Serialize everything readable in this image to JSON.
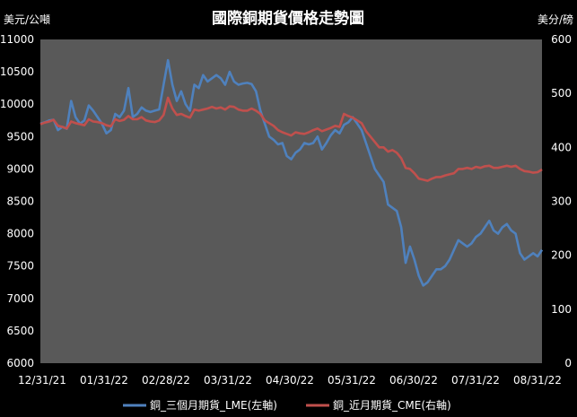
{
  "chart_data": {
    "type": "line",
    "title": "國際銅期貨價格走勢圖",
    "left_unit": "美元/公噸",
    "right_unit": "美分/磅",
    "left_axis": {
      "min": 6000,
      "max": 11000,
      "ticks": [
        6000,
        6500,
        7000,
        7500,
        8000,
        8500,
        9000,
        9500,
        10000,
        10500,
        11000
      ]
    },
    "right_axis": {
      "min": 0,
      "max": 600,
      "ticks": [
        0,
        100,
        200,
        300,
        400,
        500,
        600
      ]
    },
    "x_labels": [
      "12/31/21",
      "01/31/22",
      "02/28/22",
      "03/31/22",
      "04/30/22",
      "05/31/22",
      "06/30/22",
      "07/31/22",
      "08/31/22"
    ],
    "legend_position": "bottom",
    "grid": false,
    "background": "#595959",
    "series": [
      {
        "name": "銅_三個月期貨_LME(左軸)",
        "axis": "left",
        "color": "#4f81bd",
        "values": [
          9700,
          9720,
          9750,
          9760,
          9600,
          9650,
          9620,
          10050,
          9800,
          9700,
          9750,
          9980,
          9900,
          9800,
          9700,
          9550,
          9600,
          9850,
          9800,
          9900,
          10250,
          9800,
          9850,
          9950,
          9900,
          9880,
          9900,
          9920,
          10300,
          10680,
          10300,
          10050,
          10200,
          10000,
          9900,
          10300,
          10250,
          10450,
          10350,
          10400,
          10450,
          10400,
          10300,
          10500,
          10350,
          10300,
          10320,
          10330,
          10310,
          10200,
          9900,
          9700,
          9500,
          9450,
          9380,
          9400,
          9200,
          9150,
          9250,
          9300,
          9400,
          9380,
          9400,
          9500,
          9300,
          9400,
          9520,
          9600,
          9550,
          9680,
          9720,
          9800,
          9700,
          9600,
          9400,
          9200,
          9000,
          8900,
          8800,
          8450,
          8400,
          8350,
          8100,
          7550,
          7800,
          7600,
          7350,
          7200,
          7250,
          7350,
          7450,
          7450,
          7500,
          7600,
          7750,
          7900,
          7850,
          7800,
          7850,
          7950,
          8000,
          8100,
          8200,
          8050,
          8000,
          8100,
          8150,
          8050,
          8000,
          7700,
          7600,
          7650,
          7700,
          7650,
          7750
        ]
      },
      {
        "name": "銅_近月期貨_CME(右軸)",
        "axis": "right",
        "color": "#c0504d",
        "values": [
          443,
          446,
          448,
          451,
          440,
          438,
          435,
          448,
          445,
          443,
          441,
          452,
          448,
          447,
          445,
          441,
          439,
          452,
          449,
          451,
          458,
          452,
          452,
          456,
          450,
          448,
          447,
          450,
          460,
          492,
          472,
          460,
          462,
          458,
          455,
          470,
          468,
          470,
          472,
          475,
          472,
          474,
          470,
          476,
          475,
          470,
          468,
          468,
          472,
          468,
          462,
          450,
          445,
          440,
          432,
          428,
          425,
          422,
          428,
          426,
          425,
          428,
          432,
          435,
          430,
          433,
          436,
          440,
          438,
          462,
          458,
          455,
          450,
          445,
          430,
          420,
          410,
          400,
          400,
          392,
          395,
          390,
          380,
          362,
          360,
          352,
          342,
          340,
          338,
          342,
          345,
          345,
          348,
          350,
          352,
          360,
          360,
          362,
          360,
          364,
          362,
          365,
          366,
          362,
          362,
          364,
          366,
          364,
          366,
          360,
          356,
          355,
          353,
          354,
          359
        ]
      }
    ]
  }
}
